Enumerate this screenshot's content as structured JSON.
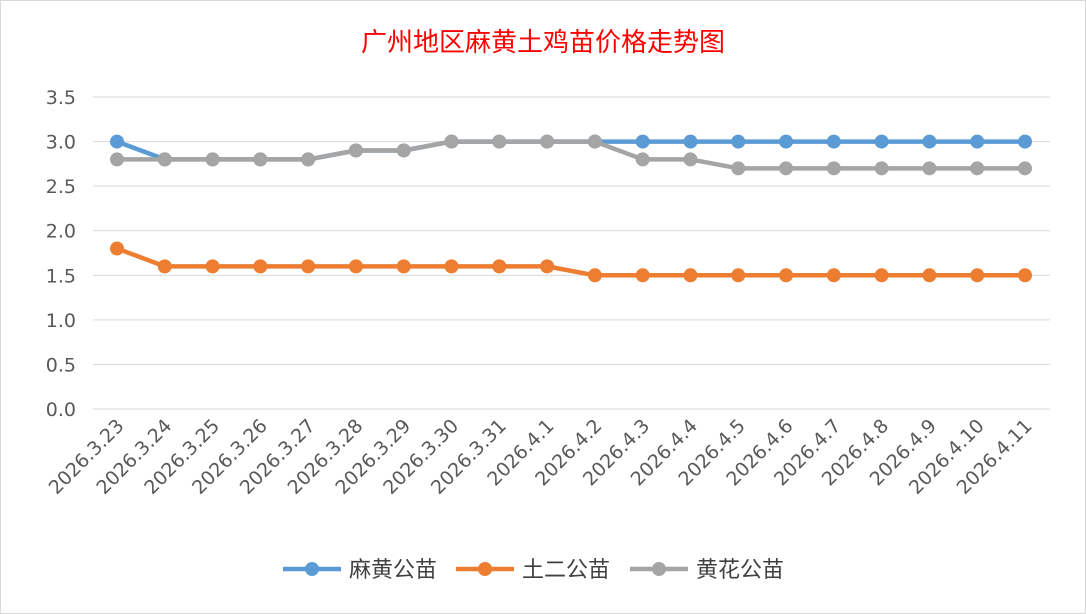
{
  "chart_data": {
    "type": "line",
    "title": "广州地区麻黄土鸡苗价格走势图",
    "xlabel": "",
    "ylabel": "",
    "ylim": [
      0,
      3.5
    ],
    "yticks": [
      "0.0",
      "0.5",
      "1.0",
      "1.5",
      "2.0",
      "2.5",
      "3.0",
      "3.5"
    ],
    "grid": true,
    "legend_position": "bottom",
    "categories": [
      "2026.3.23",
      "2026.3.24",
      "2026.3.25",
      "2026.3.26",
      "2026.3.27",
      "2026.3.28",
      "2026.3.29",
      "2026.3.30",
      "2026.3.31",
      "2026.4.1",
      "2026.4.2",
      "2026.4.3",
      "2026.4.4",
      "2026.4.5",
      "2026.4.6",
      "2026.4.7",
      "2026.4.8",
      "2026.4.9",
      "2026.4.10",
      "2026.4.11"
    ],
    "series": [
      {
        "name": "麻黄公苗",
        "color": "#5b9bd5",
        "values": [
          3.0,
          2.8,
          2.8,
          2.8,
          2.8,
          2.9,
          2.9,
          3.0,
          3.0,
          3.0,
          3.0,
          3.0,
          3.0,
          3.0,
          3.0,
          3.0,
          3.0,
          3.0,
          3.0,
          3.0
        ]
      },
      {
        "name": "土二公苗",
        "color": "#ed7d31",
        "values": [
          1.8,
          1.6,
          1.6,
          1.6,
          1.6,
          1.6,
          1.6,
          1.6,
          1.6,
          1.6,
          1.5,
          1.5,
          1.5,
          1.5,
          1.5,
          1.5,
          1.5,
          1.5,
          1.5,
          1.5
        ]
      },
      {
        "name": "黄花公苗",
        "color": "#a5a5a5",
        "values": [
          2.8,
          2.8,
          2.8,
          2.8,
          2.8,
          2.9,
          2.9,
          3.0,
          3.0,
          3.0,
          3.0,
          2.8,
          2.8,
          2.7,
          2.7,
          2.7,
          2.7,
          2.7,
          2.7,
          2.7
        ]
      }
    ]
  }
}
